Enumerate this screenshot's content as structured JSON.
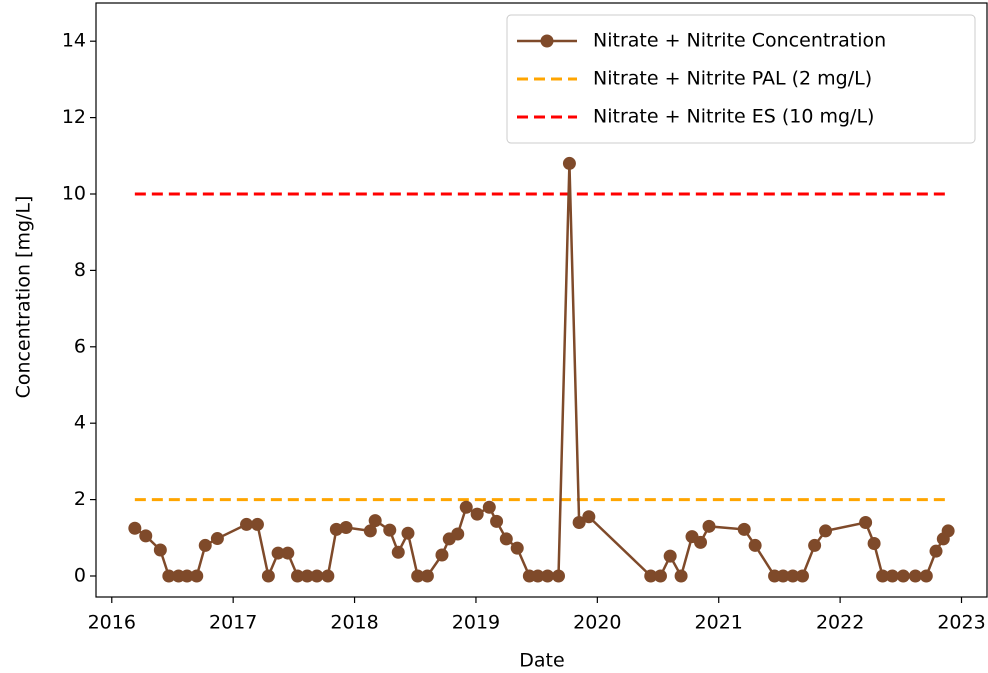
{
  "chart_data": {
    "type": "line",
    "xlabel": "Date",
    "ylabel": "Concentration [mg/L]",
    "xlim": [
      2015.87,
      2023.21
    ],
    "xticks": [
      2016,
      2017,
      2018,
      2019,
      2020,
      2021,
      2022,
      2023
    ],
    "ylim": [
      -0.55,
      15.0
    ],
    "yticks": [
      0,
      2,
      4,
      6,
      8,
      10,
      12,
      14
    ],
    "legend": "upper right",
    "grid": false,
    "series": [
      {
        "name": "Nitrate + Nitrite Concentration",
        "color": "#7f4a2a",
        "x": [
          2016.19,
          2016.28,
          2016.4,
          2016.47,
          2016.55,
          2016.62,
          2016.7,
          2016.77,
          2016.87,
          2017.11,
          2017.2,
          2017.29,
          2017.37,
          2017.45,
          2017.53,
          2017.61,
          2017.69,
          2017.78,
          2017.85,
          2017.93,
          2018.13,
          2018.17,
          2018.29,
          2018.36,
          2018.44,
          2018.52,
          2018.6,
          2018.72,
          2018.78,
          2018.85,
          2018.92,
          2019.01,
          2019.11,
          2019.17,
          2019.25,
          2019.34,
          2019.44,
          2019.51,
          2019.59,
          2019.68,
          2019.77,
          2019.85,
          2019.93,
          2020.44,
          2020.52,
          2020.6,
          2020.69,
          2020.78,
          2020.85,
          2020.92,
          2021.21,
          2021.3,
          2021.46,
          2021.53,
          2021.61,
          2021.69,
          2021.79,
          2021.88,
          2022.21,
          2022.28,
          2022.35,
          2022.43,
          2022.52,
          2022.62,
          2022.71,
          2022.79,
          2022.85,
          2022.89
        ],
        "values": [
          1.25,
          1.05,
          0.68,
          0,
          0,
          0,
          0,
          0.8,
          0.98,
          1.35,
          1.35,
          0,
          0.6,
          0.6,
          0,
          0,
          0,
          0,
          1.22,
          1.27,
          1.18,
          1.45,
          1.2,
          0.62,
          1.12,
          0,
          0,
          0.55,
          0.97,
          1.1,
          1.8,
          1.62,
          1.8,
          1.43,
          0.97,
          0.73,
          0,
          0,
          0,
          0,
          10.8,
          1.4,
          1.55,
          0,
          0,
          0.52,
          0,
          1.03,
          0.88,
          1.3,
          1.22,
          0.8,
          0,
          0,
          0,
          0,
          0.8,
          1.18,
          1.4,
          0.85,
          0,
          0,
          0,
          0,
          0,
          0.65,
          0.97,
          1.18
        ]
      }
    ],
    "hlines": [
      {
        "name": "Nitrate + Nitrite PAL (2 mg/L)",
        "color": "#ffa500",
        "value": 2,
        "xmin": 2016.19,
        "xmax": 2022.89
      },
      {
        "name": "Nitrate + Nitrite ES (10 mg/L)",
        "color": "#ff0000",
        "value": 10,
        "xmin": 2016.19,
        "xmax": 2022.89
      }
    ]
  }
}
